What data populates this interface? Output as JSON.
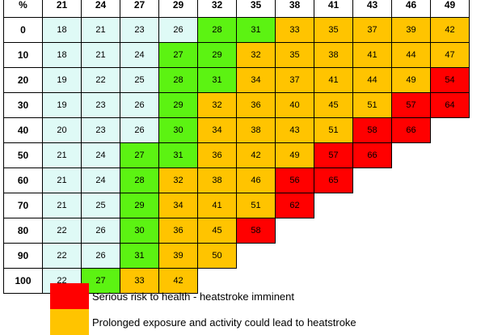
{
  "colors": {
    "safe": "#dffaf6",
    "caution": "#5cf312",
    "warning": "#ffc400",
    "danger": "#ff0000"
  },
  "table": {
    "corner_label": "%",
    "temperatures": [
      "21",
      "24",
      "27",
      "29",
      "32",
      "35",
      "38",
      "41",
      "43",
      "46",
      "49"
    ],
    "rows": [
      {
        "rh": "0",
        "cells": [
          {
            "v": "18",
            "c": "safe"
          },
          {
            "v": "21",
            "c": "safe"
          },
          {
            "v": "23",
            "c": "safe"
          },
          {
            "v": "26",
            "c": "safe"
          },
          {
            "v": "28",
            "c": "caution"
          },
          {
            "v": "31",
            "c": "caution"
          },
          {
            "v": "33",
            "c": "warning"
          },
          {
            "v": "35",
            "c": "warning"
          },
          {
            "v": "37",
            "c": "warning"
          },
          {
            "v": "39",
            "c": "warning"
          },
          {
            "v": "42",
            "c": "warning"
          }
        ]
      },
      {
        "rh": "10",
        "cells": [
          {
            "v": "18",
            "c": "safe"
          },
          {
            "v": "21",
            "c": "safe"
          },
          {
            "v": "24",
            "c": "safe"
          },
          {
            "v": "27",
            "c": "caution"
          },
          {
            "v": "29",
            "c": "caution"
          },
          {
            "v": "32",
            "c": "warning"
          },
          {
            "v": "35",
            "c": "warning"
          },
          {
            "v": "38",
            "c": "warning"
          },
          {
            "v": "41",
            "c": "warning"
          },
          {
            "v": "44",
            "c": "warning"
          },
          {
            "v": "47",
            "c": "warning"
          }
        ]
      },
      {
        "rh": "20",
        "cells": [
          {
            "v": "19",
            "c": "safe"
          },
          {
            "v": "22",
            "c": "safe"
          },
          {
            "v": "25",
            "c": "safe"
          },
          {
            "v": "28",
            "c": "caution"
          },
          {
            "v": "31",
            "c": "caution"
          },
          {
            "v": "34",
            "c": "warning"
          },
          {
            "v": "37",
            "c": "warning"
          },
          {
            "v": "41",
            "c": "warning"
          },
          {
            "v": "44",
            "c": "warning"
          },
          {
            "v": "49",
            "c": "warning"
          },
          {
            "v": "54",
            "c": "danger"
          }
        ]
      },
      {
        "rh": "30",
        "cells": [
          {
            "v": "19",
            "c": "safe"
          },
          {
            "v": "23",
            "c": "safe"
          },
          {
            "v": "26",
            "c": "safe"
          },
          {
            "v": "29",
            "c": "caution"
          },
          {
            "v": "32",
            "c": "warning"
          },
          {
            "v": "36",
            "c": "warning"
          },
          {
            "v": "40",
            "c": "warning"
          },
          {
            "v": "45",
            "c": "warning"
          },
          {
            "v": "51",
            "c": "warning"
          },
          {
            "v": "57",
            "c": "danger"
          },
          {
            "v": "64",
            "c": "danger"
          }
        ]
      },
      {
        "rh": "40",
        "cells": [
          {
            "v": "20",
            "c": "safe"
          },
          {
            "v": "23",
            "c": "safe"
          },
          {
            "v": "26",
            "c": "safe"
          },
          {
            "v": "30",
            "c": "caution"
          },
          {
            "v": "34",
            "c": "warning"
          },
          {
            "v": "38",
            "c": "warning"
          },
          {
            "v": "43",
            "c": "warning"
          },
          {
            "v": "51",
            "c": "warning"
          },
          {
            "v": "58",
            "c": "danger"
          },
          {
            "v": "66",
            "c": "danger"
          }
        ]
      },
      {
        "rh": "50",
        "cells": [
          {
            "v": "21",
            "c": "safe"
          },
          {
            "v": "24",
            "c": "safe"
          },
          {
            "v": "27",
            "c": "caution"
          },
          {
            "v": "31",
            "c": "caution"
          },
          {
            "v": "36",
            "c": "warning"
          },
          {
            "v": "42",
            "c": "warning"
          },
          {
            "v": "49",
            "c": "warning"
          },
          {
            "v": "57",
            "c": "danger"
          },
          {
            "v": "66",
            "c": "danger"
          }
        ]
      },
      {
        "rh": "60",
        "cells": [
          {
            "v": "21",
            "c": "safe"
          },
          {
            "v": "24",
            "c": "safe"
          },
          {
            "v": "28",
            "c": "caution"
          },
          {
            "v": "32",
            "c": "warning"
          },
          {
            "v": "38",
            "c": "warning"
          },
          {
            "v": "46",
            "c": "warning"
          },
          {
            "v": "56",
            "c": "danger"
          },
          {
            "v": "65",
            "c": "danger"
          }
        ]
      },
      {
        "rh": "70",
        "cells": [
          {
            "v": "21",
            "c": "safe"
          },
          {
            "v": "25",
            "c": "safe"
          },
          {
            "v": "29",
            "c": "caution"
          },
          {
            "v": "34",
            "c": "warning"
          },
          {
            "v": "41",
            "c": "warning"
          },
          {
            "v": "51",
            "c": "warning"
          },
          {
            "v": "62",
            "c": "danger"
          }
        ]
      },
      {
        "rh": "80",
        "cells": [
          {
            "v": "22",
            "c": "safe"
          },
          {
            "v": "26",
            "c": "safe"
          },
          {
            "v": "30",
            "c": "caution"
          },
          {
            "v": "36",
            "c": "warning"
          },
          {
            "v": "45",
            "c": "warning"
          },
          {
            "v": "58",
            "c": "danger"
          }
        ]
      },
      {
        "rh": "90",
        "cells": [
          {
            "v": "22",
            "c": "safe"
          },
          {
            "v": "26",
            "c": "safe"
          },
          {
            "v": "31",
            "c": "caution"
          },
          {
            "v": "39",
            "c": "warning"
          },
          {
            "v": "50",
            "c": "warning"
          }
        ]
      },
      {
        "rh": "100",
        "cells": [
          {
            "v": "22",
            "c": "safe"
          },
          {
            "v": "27",
            "c": "caution"
          },
          {
            "v": "33",
            "c": "warning"
          },
          {
            "v": "42",
            "c": "warning"
          }
        ]
      }
    ]
  },
  "legend": [
    {
      "level": "danger",
      "text": "Serious risk to health - heatstroke imminent"
    },
    {
      "level": "warning",
      "text": "Prolonged exposure and activity could lead to heatstroke"
    }
  ]
}
